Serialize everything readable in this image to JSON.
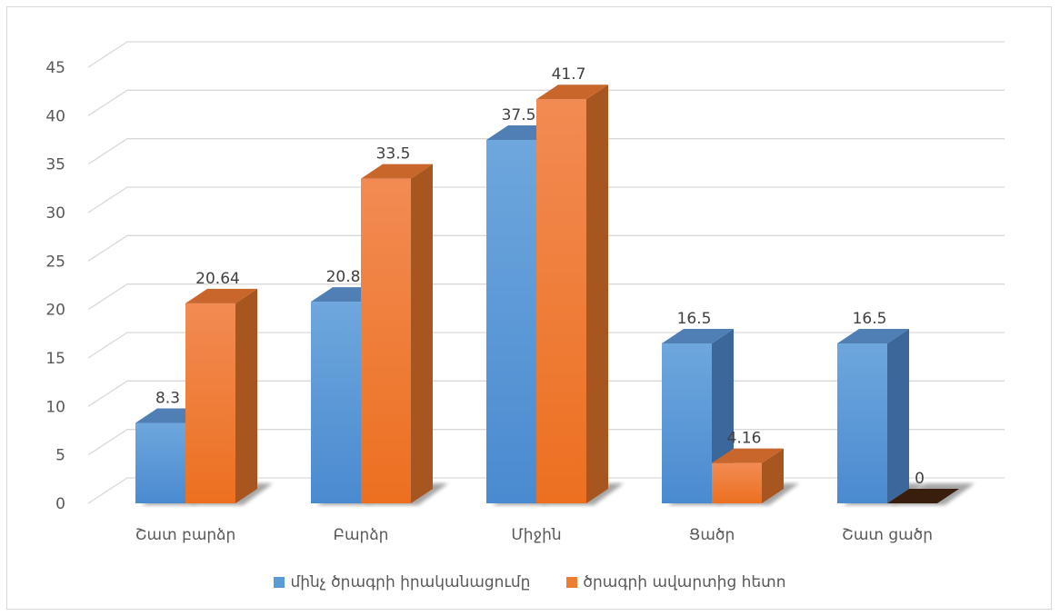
{
  "chart_data": {
    "type": "bar",
    "categories": [
      "Շատ բարձր",
      "Բարձր",
      "Միջին",
      "Ցածր",
      "Շատ ցածր"
    ],
    "series": [
      {
        "name": "մինչ  ծրագրի իրականացումը",
        "values": [
          8.3,
          20.8,
          37.5,
          16.5,
          16.5
        ],
        "labels": [
          "8.3",
          "20.8",
          "37.5",
          "16.5",
          "16.5"
        ],
        "color": "#5b9bd5"
      },
      {
        "name": "ծրագրի ավարտից հետո",
        "values": [
          20.64,
          33.5,
          41.7,
          4.16,
          0
        ],
        "labels": [
          "20.64",
          "33.5",
          "41.7",
          "4.16",
          "0"
        ],
        "color": "#ed7d31"
      }
    ],
    "yticks": [
      "0",
      "5",
      "10",
      "15",
      "20",
      "25",
      "30",
      "35",
      "40",
      "45"
    ],
    "ylim": [
      0,
      45
    ],
    "grid": true,
    "legend_position": "bottom",
    "style": "3d-clustered-column"
  }
}
